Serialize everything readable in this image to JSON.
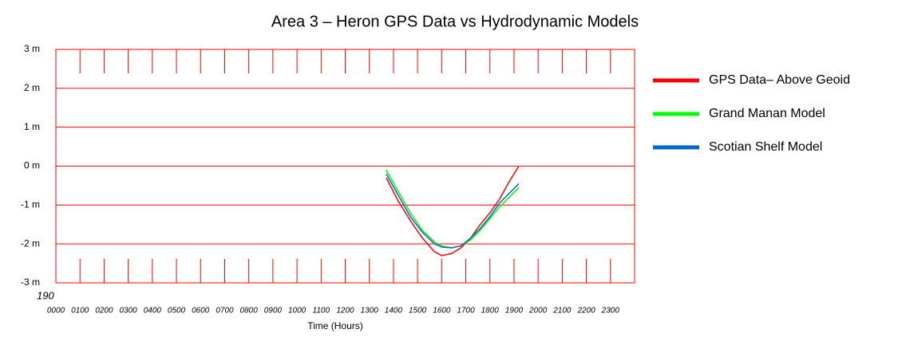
{
  "chart_data": {
    "type": "line",
    "title": "Area 3 – Heron GPS Data  vs Hydrodynamic Models",
    "xlabel": "Time (Hours)",
    "annotation": "190",
    "x": [
      13.7,
      14.2,
      14.7,
      15.2,
      15.7,
      16.0,
      16.4,
      16.8,
      17.2,
      17.6,
      18.0,
      18.4,
      18.8,
      19.2
    ],
    "series": [
      {
        "name": "GPS Data– Above Geoid",
        "color": "#ff0000",
        "values": [
          -0.3,
          -0.9,
          -1.4,
          -1.85,
          -2.2,
          -2.3,
          -2.25,
          -2.1,
          -1.85,
          -1.5,
          -1.2,
          -0.85,
          -0.4,
          0
        ]
      },
      {
        "name": "Grand Manan Model",
        "color": "#00ff00",
        "values": [
          -0.1,
          -0.65,
          -1.2,
          -1.65,
          -1.95,
          -2.05,
          -2.1,
          -2.05,
          -1.9,
          -1.65,
          -1.35,
          -1.05,
          -0.8,
          -0.55
        ]
      },
      {
        "name": "Scotian Shelf Model",
        "color": "#0066cc",
        "values": [
          -0.2,
          -0.75,
          -1.3,
          -1.7,
          -2.0,
          -2.08,
          -2.1,
          -2.05,
          -1.85,
          -1.6,
          -1.3,
          -0.95,
          -0.7,
          -0.45
        ]
      }
    ],
    "xlim": [
      0,
      24
    ],
    "xticks": [
      {
        "value": 0,
        "label": "0000"
      },
      {
        "value": 1,
        "label": "0100"
      },
      {
        "value": 2,
        "label": "0200"
      },
      {
        "value": 3,
        "label": "0300"
      },
      {
        "value": 4,
        "label": "0400"
      },
      {
        "value": 5,
        "label": "0500"
      },
      {
        "value": 6,
        "label": "0600"
      },
      {
        "value": 7,
        "label": "0700"
      },
      {
        "value": 8,
        "label": "0800"
      },
      {
        "value": 9,
        "label": "0900"
      },
      {
        "value": 10,
        "label": "1000"
      },
      {
        "value": 11,
        "label": "1100"
      },
      {
        "value": 12,
        "label": "1200"
      },
      {
        "value": 13,
        "label": "1300"
      },
      {
        "value": 14,
        "label": "1400"
      },
      {
        "value": 15,
        "label": "1500"
      },
      {
        "value": 16,
        "label": "1600"
      },
      {
        "value": 17,
        "label": "1700"
      },
      {
        "value": 18,
        "label": "1800"
      },
      {
        "value": 19,
        "label": "1900"
      },
      {
        "value": 20,
        "label": "2000"
      },
      {
        "value": 21,
        "label": "2100"
      },
      {
        "value": 22,
        "label": "2200"
      },
      {
        "value": 23,
        "label": "2300"
      }
    ],
    "ylim": [
      -3,
      3
    ],
    "yticks": [
      {
        "value": 3,
        "label": "3 m"
      },
      {
        "value": 2,
        "label": "2 m"
      },
      {
        "value": 1,
        "label": "1 m"
      },
      {
        "value": 0,
        "label": "0 m"
      },
      {
        "value": -1,
        "label": "-1 m"
      },
      {
        "value": -2,
        "label": "-2 m"
      },
      {
        "value": -3,
        "label": "-3 m"
      }
    ],
    "grid": true,
    "grid_color": "#ff0000",
    "legend": "right"
  }
}
